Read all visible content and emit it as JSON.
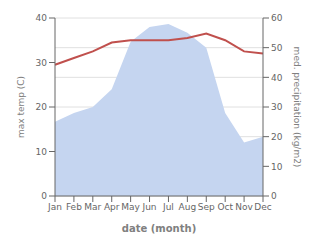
{
  "chart_data": {
    "type": "line",
    "xlabel": "date (month)",
    "ylabel": "max temp (C)",
    "y2label": "med. precipitation (kg/m2)",
    "categories": [
      "Jan",
      "Feb",
      "Mar",
      "Apr",
      "May",
      "Jun",
      "Jul",
      "Aug",
      "Sep",
      "Oct",
      "Nov",
      "Dec"
    ],
    "ylim": [
      0,
      40
    ],
    "yticks": [
      0,
      10,
      20,
      30,
      40
    ],
    "y2lim": [
      0,
      60
    ],
    "y2ticks": [
      0,
      10,
      20,
      30,
      40,
      50,
      60
    ],
    "grid": true,
    "series": [
      {
        "type": "area",
        "axis": "y2",
        "color": "#c5d5f0",
        "values": [
          25,
          28,
          30,
          36,
          52,
          57,
          58,
          55,
          50,
          28,
          18,
          20
        ]
      },
      {
        "type": "line",
        "color": "#c0504d",
        "values": [
          29.5,
          31.0,
          32.5,
          34.5,
          35.0,
          35.0,
          35.0,
          35.5,
          36.5,
          35.0,
          32.5,
          32.0
        ]
      }
    ]
  }
}
